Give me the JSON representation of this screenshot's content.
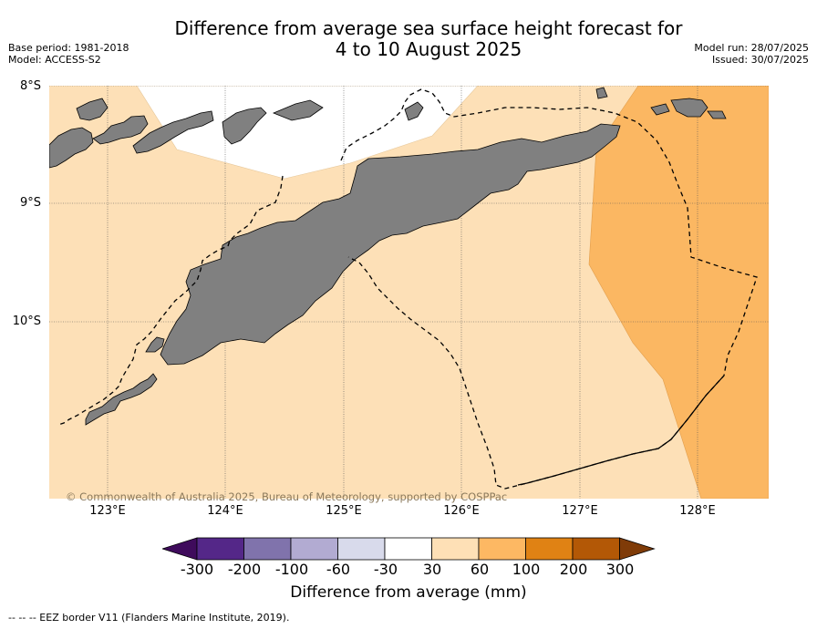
{
  "header": {
    "title_line1": "Difference from average sea surface height forecast for",
    "title_line2": "4 to 10 August 2025",
    "base_period": "Base period: 1981-2018",
    "model": "Model: ACCESS-S2",
    "model_run": "Model run: 28/07/2025",
    "issued": "Issued: 30/07/2025"
  },
  "map": {
    "lat_labels": [
      "8°S",
      "9°S",
      "10°S"
    ],
    "lon_labels": [
      "123°E",
      "124°E",
      "125°E",
      "126°E",
      "127°E",
      "128°E"
    ],
    "copyright": "© Commonwealth of Australia 2025, Bureau of Meteorology, supported by COSPPac",
    "colors": {
      "land": "#808080",
      "band_30_60": "#fde0b7",
      "band_60_100": "#fbb762",
      "neutral": "#ffffff"
    }
  },
  "colorbar": {
    "label": "Difference from average (mm)",
    "ticks": [
      "-300",
      "-200",
      "-100",
      "-60",
      "-30",
      "30",
      "60",
      "100",
      "200",
      "300"
    ],
    "colors": [
      "#3f0b5c",
      "#542788",
      "#8073ac",
      "#b2abd2",
      "#d8daeb",
      "#ffffff",
      "#fee0b6",
      "#fdb863",
      "#e08214",
      "#b35806",
      "#7f3b08"
    ]
  },
  "footnote": "--  --  -- EEZ border V11 (Flanders Marine Institute, 2019)."
}
